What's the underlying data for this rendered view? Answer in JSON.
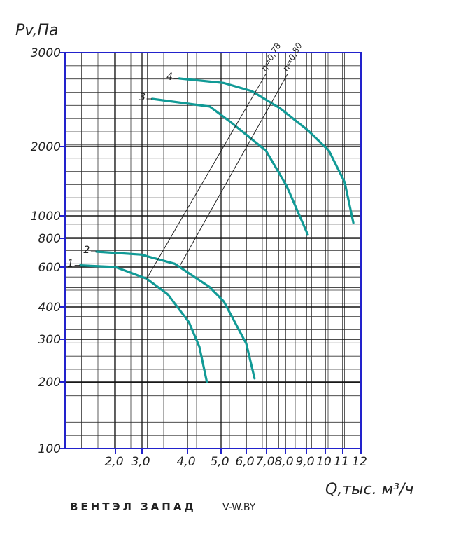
{
  "chart_data": {
    "type": "line",
    "y_label": "Pv,Па",
    "x_label": "Q,тыс. м³/ч",
    "log_scale": true,
    "xlim": [
      1.3,
      12
    ],
    "xticks": [
      {
        "value": 2,
        "label": "2,0"
      },
      {
        "value": 3,
        "label": "3,0"
      },
      {
        "value": 4,
        "label": "4,0"
      },
      {
        "value": 5,
        "label": "5,0"
      },
      {
        "value": 6,
        "label": "6,0"
      },
      {
        "value": 7,
        "label": "7,0"
      },
      {
        "value": 8,
        "label": "8,0"
      },
      {
        "value": 9,
        "label": "9,0"
      },
      10,
      11,
      12
    ],
    "ylim": [
      100,
      3000
    ],
    "yticks": [
      100,
      200,
      300,
      400,
      600,
      800,
      1000,
      2000,
      3000
    ],
    "series": [
      {
        "name": "1",
        "color": "#119a96",
        "x": [
          1.48,
          2.0,
          3.09,
          3.53,
          4.04,
          4.33,
          4.55
        ],
        "values": [
          610,
          600,
          533,
          455,
          349,
          279,
          200
        ]
      },
      {
        "name": "2",
        "color": "#119a96",
        "x": [
          1.7,
          2.95,
          3.69,
          4.63,
          5.1,
          6.0,
          6.39
        ],
        "values": [
          700,
          680,
          620,
          490,
          423,
          288,
          207
        ]
      },
      {
        "name": "3",
        "color": "#119a96",
        "x": [
          3.2,
          4.64,
          5.37,
          6.97,
          8.05,
          9.07
        ],
        "values": [
          2457,
          2377,
          2220,
          1917,
          1351,
          829
        ]
      },
      {
        "name": "4",
        "color": "#119a96",
        "x": [
          3.8,
          5.1,
          6.26,
          7.7,
          9.07,
          10.2,
          11.1,
          11.57
        ],
        "values": [
          2683,
          2631,
          2540,
          2359,
          2146,
          1917,
          1400,
          933
        ]
      }
    ],
    "efficiency_lines": [
      {
        "label": "η=0,78",
        "x": [
          3.09,
          6.97
        ],
        "values": [
          533,
          2738
        ]
      },
      {
        "label": "η=0,80",
        "x": [
          3.8,
          8.1
        ],
        "values": [
          602,
          2738
        ]
      }
    ]
  },
  "watermark": {
    "brand_a": "ВЕНТЭЛ",
    "brand_b": "ЗАПАД",
    "site": "V-W.BY"
  }
}
